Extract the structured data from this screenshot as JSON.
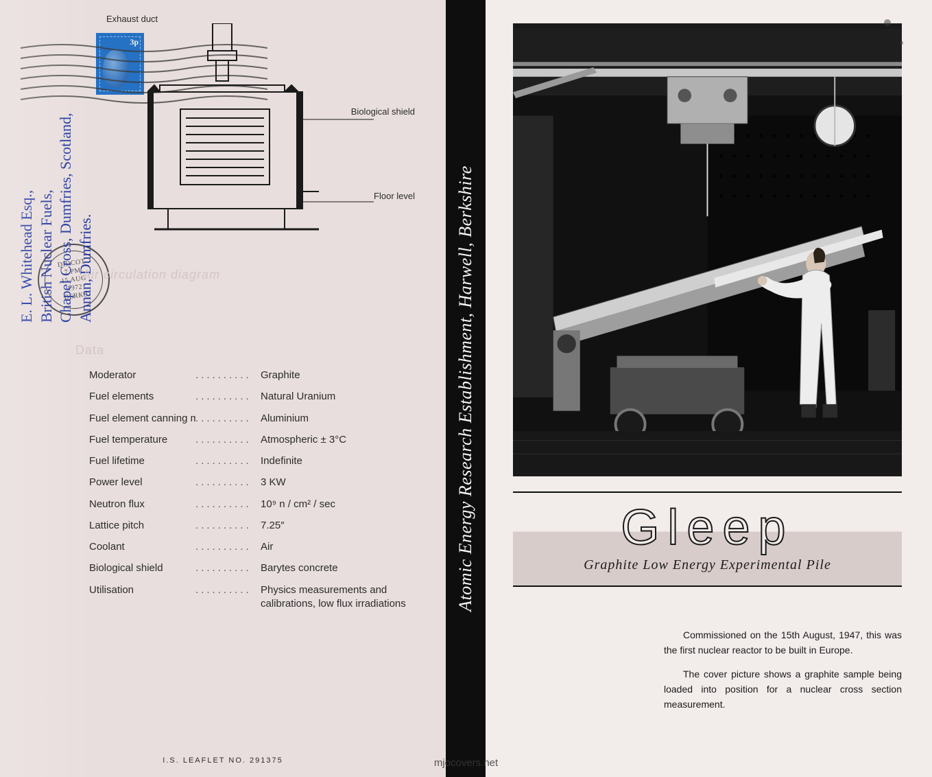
{
  "left": {
    "stamp_value": "3p",
    "postmark": {
      "town": "DIDCOT",
      "time": "7 PM",
      "date": "15 AUG",
      "year": "1972",
      "county": "BERKS"
    },
    "address_handwritten": "E. L. Whitehead Esq.,\nBritish Nuclear Fuels,\nChapel Cross, Dumfries, Scotland,\nAnnan, Dumfries.",
    "diagram": {
      "labels": {
        "exhaust": "Exhaust duct",
        "biological": "Biological shield",
        "floor": "Floor level"
      },
      "caption": "Air circulation diagram"
    },
    "data_heading": "Data",
    "data_rows": [
      {
        "key": "Moderator",
        "value": "Graphite"
      },
      {
        "key": "Fuel elements",
        "value": "Natural Uranium"
      },
      {
        "key": "Fuel element canning material",
        "value": "Aluminium"
      },
      {
        "key": "Fuel temperature",
        "value": "Atmospheric ± 3°C"
      },
      {
        "key": "Fuel lifetime",
        "value": "Indefinite"
      },
      {
        "key": "Power level",
        "value": "3 KW"
      },
      {
        "key": "Neutron flux",
        "value": "10⁹ n / cm² / sec"
      },
      {
        "key": "Lattice pitch",
        "value": "7.25″"
      },
      {
        "key": "Coolant",
        "value": "Air"
      },
      {
        "key": "Biological shield",
        "value": "Barytes concrete"
      },
      {
        "key": "Utilisation",
        "value": "Physics measurements and calibrations, low flux irradiations"
      }
    ],
    "leaflet_no": "I.S.  LEAFLET  NO.  291375"
  },
  "strip_text": "Atomic Energy Research Establishment, Harwell, Berkshire",
  "right": {
    "title": "Gleep",
    "subtitle": "Graphite Low Energy Experimental Pile",
    "paragraphs": [
      "Commissioned on the 15th August, 1947, this was the first nuclear reactor to be built in Europe.",
      "The cover picture shows a graphite sample being loaded into position for a nuclear cross section measurement."
    ]
  },
  "watermark": "mjocovers.net",
  "colors": {
    "paper": "#f2eceb",
    "left_paper": "#e8dedd",
    "ink": "#1a1a1a",
    "black_strip": "#0e0e0e",
    "stamp_blue": "#2571c4",
    "pen_blue": "#2338a0",
    "faded_label": "#d4c6c5"
  },
  "diagram_style": {
    "stroke": "#1a1a1a",
    "stroke_width": 2,
    "fill": "none"
  }
}
